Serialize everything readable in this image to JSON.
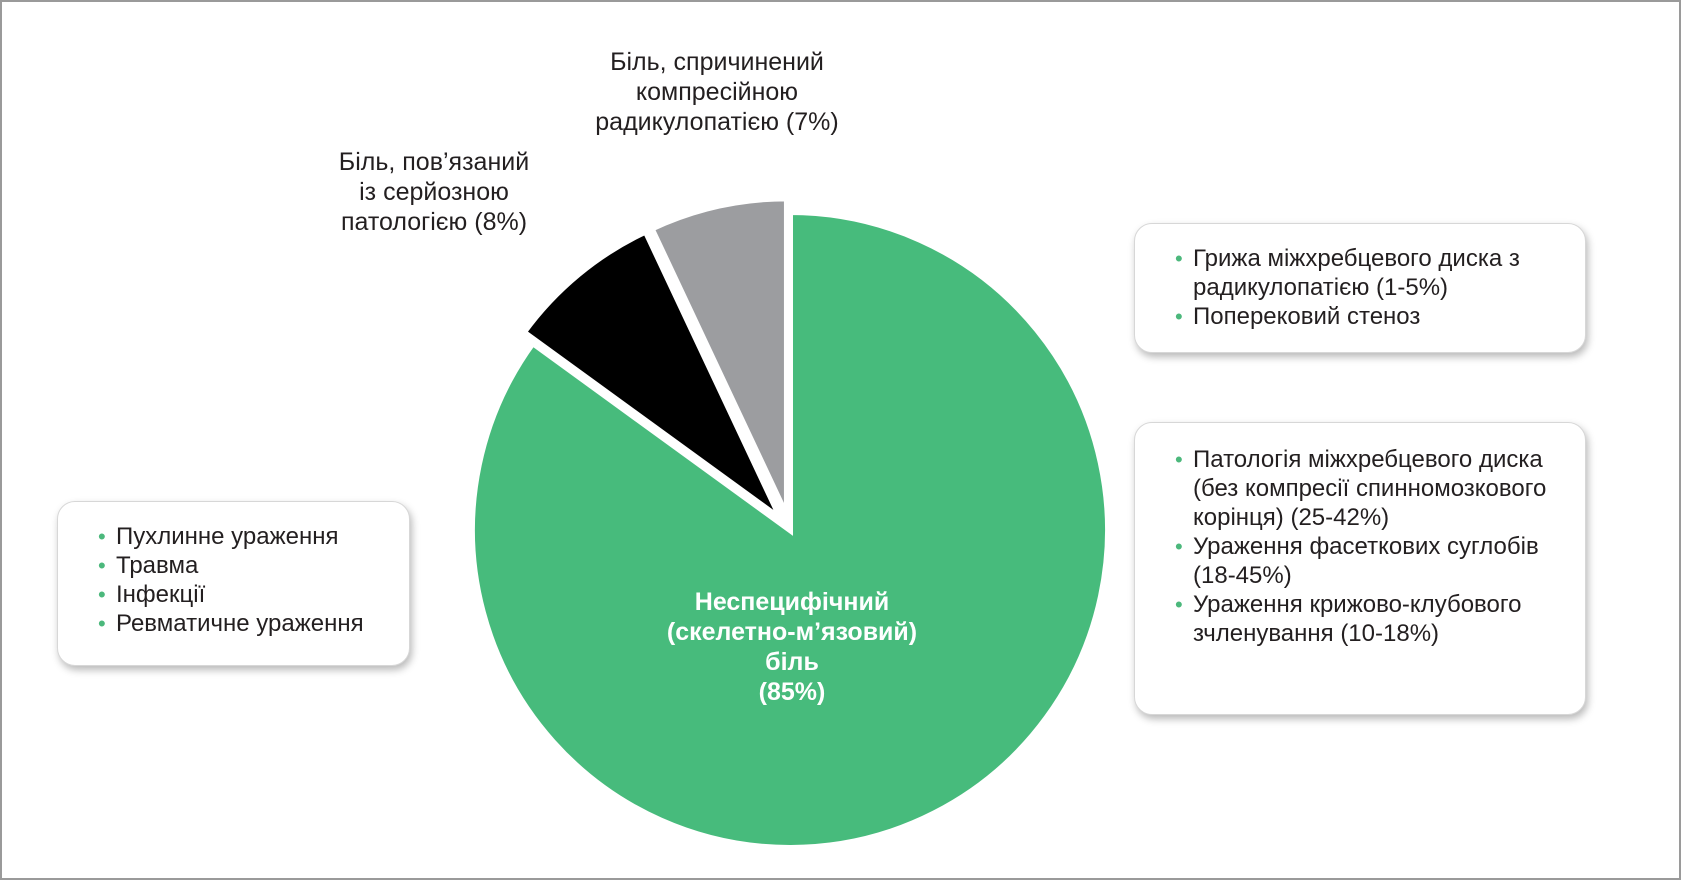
{
  "chart_data": {
    "type": "pie",
    "title": "",
    "slices": [
      {
        "label": "Неспецифічний (скелетно-м’язовий) біль (85%)",
        "value": 85,
        "color": "#47bb7c"
      },
      {
        "label": "Біль, пов’язаний із серйозною патологією (8%)",
        "value": 8,
        "color": "#000000"
      },
      {
        "label": "Біль, спричинений компресійною радикулопатією (7%)",
        "value": 7,
        "color": "#9c9da0"
      }
    ],
    "slice_label_lines": {
      "nonspecific": [
        "Неспецифічний",
        "(скелетно-м’язовий)",
        "біль",
        "(85%)"
      ],
      "serious": [
        "Біль, пов’язаний",
        "із серйозною",
        "патологією (8%)"
      ],
      "radiculopathy": [
        "Біль, спричинений",
        "компресійною",
        "радикулопатією (7%)"
      ]
    },
    "annotations": {
      "serious_pathology": [
        "Пухлинне ураження",
        "Травма",
        "Інфекції",
        "Ревматичне ураження"
      ],
      "radiculopathy": [
        "Грижа міжхребцевого диска з радикулопатією (1-5%)",
        "Поперековий стеноз"
      ],
      "nonspecific": [
        "Патологія міжхребцевого диска (без компресії спинномозкового корінця) (25-42%)",
        "Ураження фасеткових суглобів (18-45%)",
        "Ураження крижово-клубового зчленування (10-18%)"
      ]
    },
    "colors": {
      "bullet": "#4cb87c",
      "border": "#9a9a9a"
    }
  }
}
